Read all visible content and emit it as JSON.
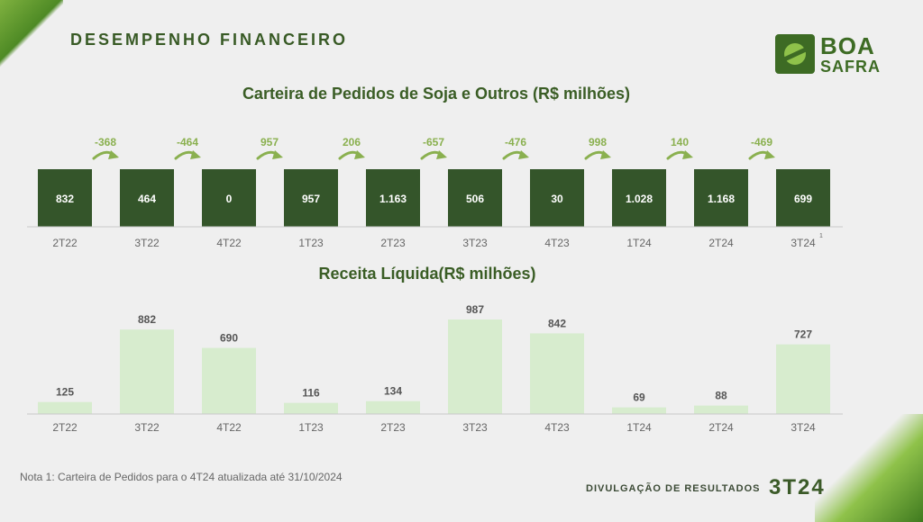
{
  "header": {
    "section_title": "DESEMPENHO FINANCEIRO",
    "logo": {
      "line1": "BOA",
      "line2": "SAFRA"
    }
  },
  "chart_data": [
    {
      "type": "bar",
      "title": "Carteira de Pedidos de Soja e Outros (R$ milhões)",
      "categories": [
        "2T22",
        "3T22",
        "4T22",
        "1T23",
        "2T23",
        "3T23",
        "4T23",
        "1T24",
        "2T24",
        "3T24"
      ],
      "values": [
        832,
        464,
        0,
        957,
        1163,
        506,
        30,
        1028,
        1168,
        699
      ],
      "value_labels": [
        "832",
        "464",
        "0",
        "957",
        "1.163",
        "506",
        "30",
        "1.028",
        "1.168",
        "699"
      ],
      "changes": [
        "-368",
        "-464",
        "957",
        "206",
        "-657",
        "-476",
        "998",
        "140",
        "-469"
      ],
      "footnote_marker": {
        "category": "3T24",
        "marker": "1"
      },
      "colors": {
        "bar": "#34552a",
        "label": "#ffffff",
        "change": "#8ab04f"
      }
    },
    {
      "type": "bar",
      "title": "Receita Líquida(R$ milhões)",
      "categories": [
        "2T22",
        "3T22",
        "4T22",
        "1T23",
        "2T23",
        "3T23",
        "4T23",
        "1T24",
        "2T24",
        "3T24"
      ],
      "values": [
        125,
        882,
        690,
        116,
        134,
        987,
        842,
        69,
        88,
        727
      ],
      "value_labels": [
        "125",
        "882",
        "690",
        "116",
        "134",
        "987",
        "842",
        "69",
        "88",
        "727"
      ],
      "colors": {
        "bar": "#d7ecce",
        "label": "#555555"
      }
    }
  ],
  "footer": {
    "note": "Nota 1: Carteira de Pedidos para o 4T24 atualizada até 31/10/2024",
    "release_label": "DIVULGAÇÃO DE RESULTADOS",
    "release_quarter": "3T24"
  }
}
